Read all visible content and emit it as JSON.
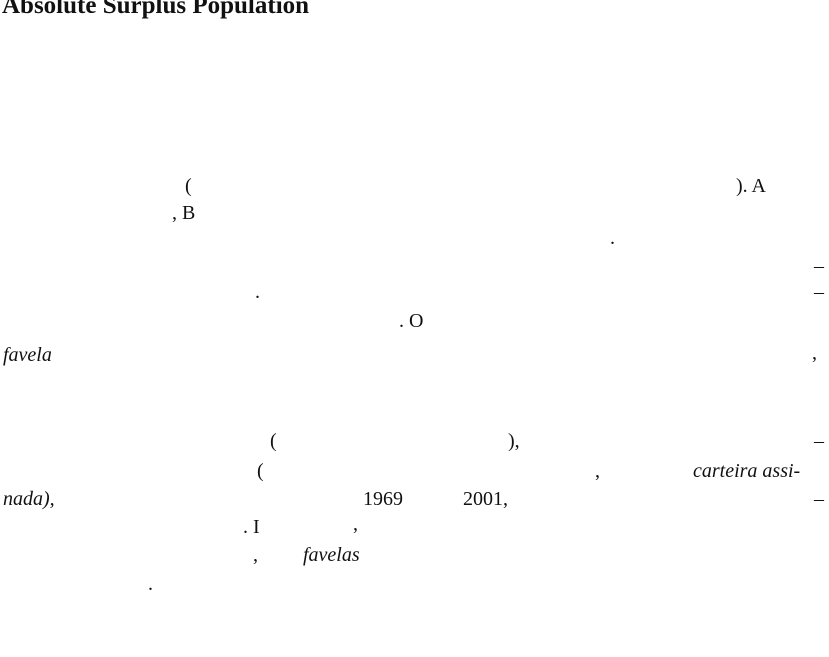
{
  "header": {
    "title": "Absolute Surplus Population"
  },
  "body": {
    "fragments": [
      "(",
      "). A",
      ", B",
      ".",
      "–",
      ".",
      "–",
      ". O",
      "favela",
      ",",
      "(",
      "),",
      "–",
      "(",
      ",",
      "carteira assi-",
      "nada),",
      "1969",
      "2001,",
      "–",
      ". I",
      ",",
      ",",
      "favelas",
      "."
    ]
  }
}
